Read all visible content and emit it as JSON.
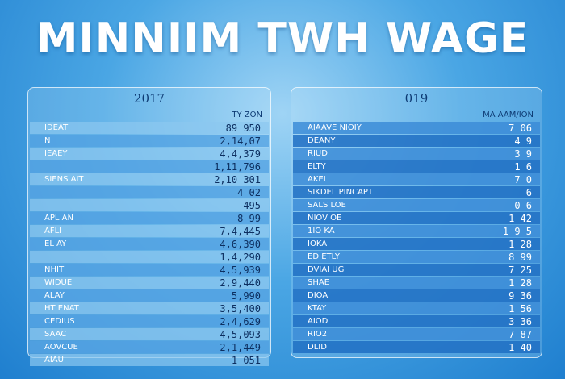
{
  "title": "MINNIIM TWH WAGE",
  "panels": [
    {
      "year": "2017",
      "column_header": "TY ZON",
      "rows": [
        {
          "label": "IDEAT",
          "value": "89 950"
        },
        {
          "label": "N",
          "value": "2,14,07"
        },
        {
          "label": "IEAEY",
          "value": "4,4,379"
        },
        {
          "value": "1,11,796"
        },
        {
          "label": "SIENS AIT",
          "value": "2,10 301"
        },
        {
          "value": "4 02"
        },
        {
          "value": "495"
        },
        {
          "label": "APL AN",
          "value": "8 99"
        },
        {
          "label": "AFLI",
          "value": "7,4,445"
        },
        {
          "label": "EL AY",
          "value": "4,6,390"
        },
        {
          "value": "1,4,290"
        },
        {
          "label": "NHIT",
          "value": "4,5,939"
        },
        {
          "label": "WIDUE",
          "value": "2,9,440"
        },
        {
          "label": "ALAY",
          "value": "5,990"
        },
        {
          "label": "HT ENAT",
          "value": "3,5,400"
        },
        {
          "label": "CEDIUS",
          "value": "2,4,629"
        },
        {
          "label": "SAAC",
          "value": "4,5,093"
        },
        {
          "label": "AOVCUE",
          "value": "2,1,449"
        },
        {
          "label": "AIAU",
          "value": "1 051"
        }
      ]
    },
    {
      "year": "019",
      "column_header": "MA AAM/ION",
      "rows": [
        {
          "label": "AIAAVE NIOIY",
          "value": "7 06"
        },
        {
          "label": "DEANY",
          "value": "4 9"
        },
        {
          "label": "RIUD",
          "value": "3 9"
        },
        {
          "label": "ELTY",
          "value": "1 6"
        },
        {
          "label": "AKEL",
          "value": "7 0"
        },
        {
          "label": "SIKDEL PINCAPT",
          "value": "6"
        },
        {
          "label": "SALS LOE",
          "value": "0 6"
        },
        {
          "label": "NIOV OE",
          "value": "1 42"
        },
        {
          "label": "1IO KA",
          "value": "1 9 5"
        },
        {
          "label": "IOKA",
          "value": "1 28"
        },
        {
          "label": "ED ETLY",
          "value": "8 99"
        },
        {
          "label": "DVIAI UG",
          "value": "7 25"
        },
        {
          "label": "SHAE",
          "value": "1 28"
        },
        {
          "label": "DIOA",
          "value": "9 36"
        },
        {
          "label": "KTAY",
          "value": "1 56"
        },
        {
          "label": "AIOD",
          "value": "3 36"
        },
        {
          "label": "RIO2",
          "value": "7 87"
        },
        {
          "label": "DLID",
          "value": "1 40"
        }
      ]
    }
  ]
}
